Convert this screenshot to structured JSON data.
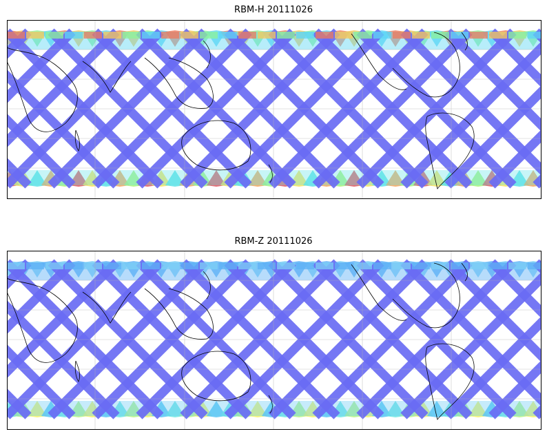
{
  "panels": [
    {
      "title": "RBM-H 20111026",
      "swath_color": "#6a6cf4",
      "polar_colors_south": [
        "#e2555e",
        "#f6a55a",
        "#fbe35c",
        "#a8f57a",
        "#5fe3e8"
      ],
      "polar_colors_north": [
        "#ef7a5c",
        "#f9c85a",
        "#8ef39a",
        "#5fd6f5"
      ],
      "land_outline_color": "#000000",
      "gridlines": true
    },
    {
      "title": "RBM-Z 20111026",
      "swath_color": "#6a6cf4",
      "polar_colors_south": [
        "#f4f46a",
        "#b6f58a",
        "#6fe6e4",
        "#5cc7f4"
      ],
      "polar_colors_north": [
        "#7ecff5",
        "#5fb1f6"
      ],
      "land_outline_color": "#000000",
      "gridlines": true
    }
  ]
}
